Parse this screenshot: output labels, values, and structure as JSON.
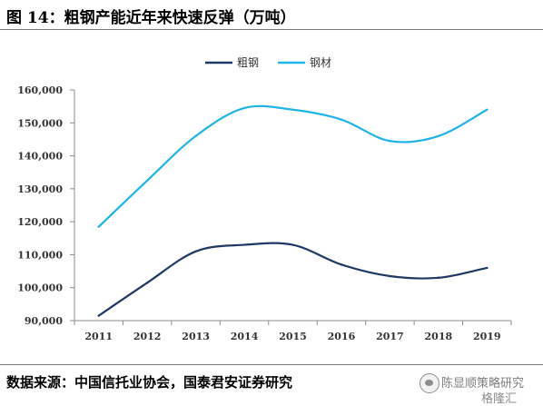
{
  "figure": {
    "title": "图 14：粗钢产能近年来快速反弹（万吨）",
    "source": "数据来源：中国信托业协会，国泰君安证券研究"
  },
  "watermark": {
    "text": "陈显顺策略研究",
    "brand": "格隆汇",
    "icon": "wechat-logo-icon"
  },
  "chart_data": {
    "type": "line",
    "title": "",
    "xlabel": "",
    "ylabel": "",
    "x": [
      "2011",
      "2012",
      "2013",
      "2014",
      "2015",
      "2016",
      "2017",
      "2018",
      "2019"
    ],
    "ylim": [
      90000,
      160000
    ],
    "yticks": [
      "90,000",
      "100,000",
      "110,000",
      "120,000",
      "130,000",
      "140,000",
      "150,000",
      "160,000"
    ],
    "ytick_values": [
      90000,
      100000,
      110000,
      120000,
      130000,
      140000,
      150000,
      160000
    ],
    "grid": false,
    "legend_position": "top-center",
    "series": [
      {
        "name": "粗钢",
        "color": "#1f3864",
        "values": [
          91500,
          101500,
          111000,
          113000,
          113000,
          107000,
          103500,
          103000,
          106000
        ]
      },
      {
        "name": "钢材",
        "color": "#1fb3e6",
        "values": [
          118500,
          132500,
          146000,
          154500,
          154000,
          151000,
          144500,
          146000,
          154000
        ]
      }
    ]
  }
}
